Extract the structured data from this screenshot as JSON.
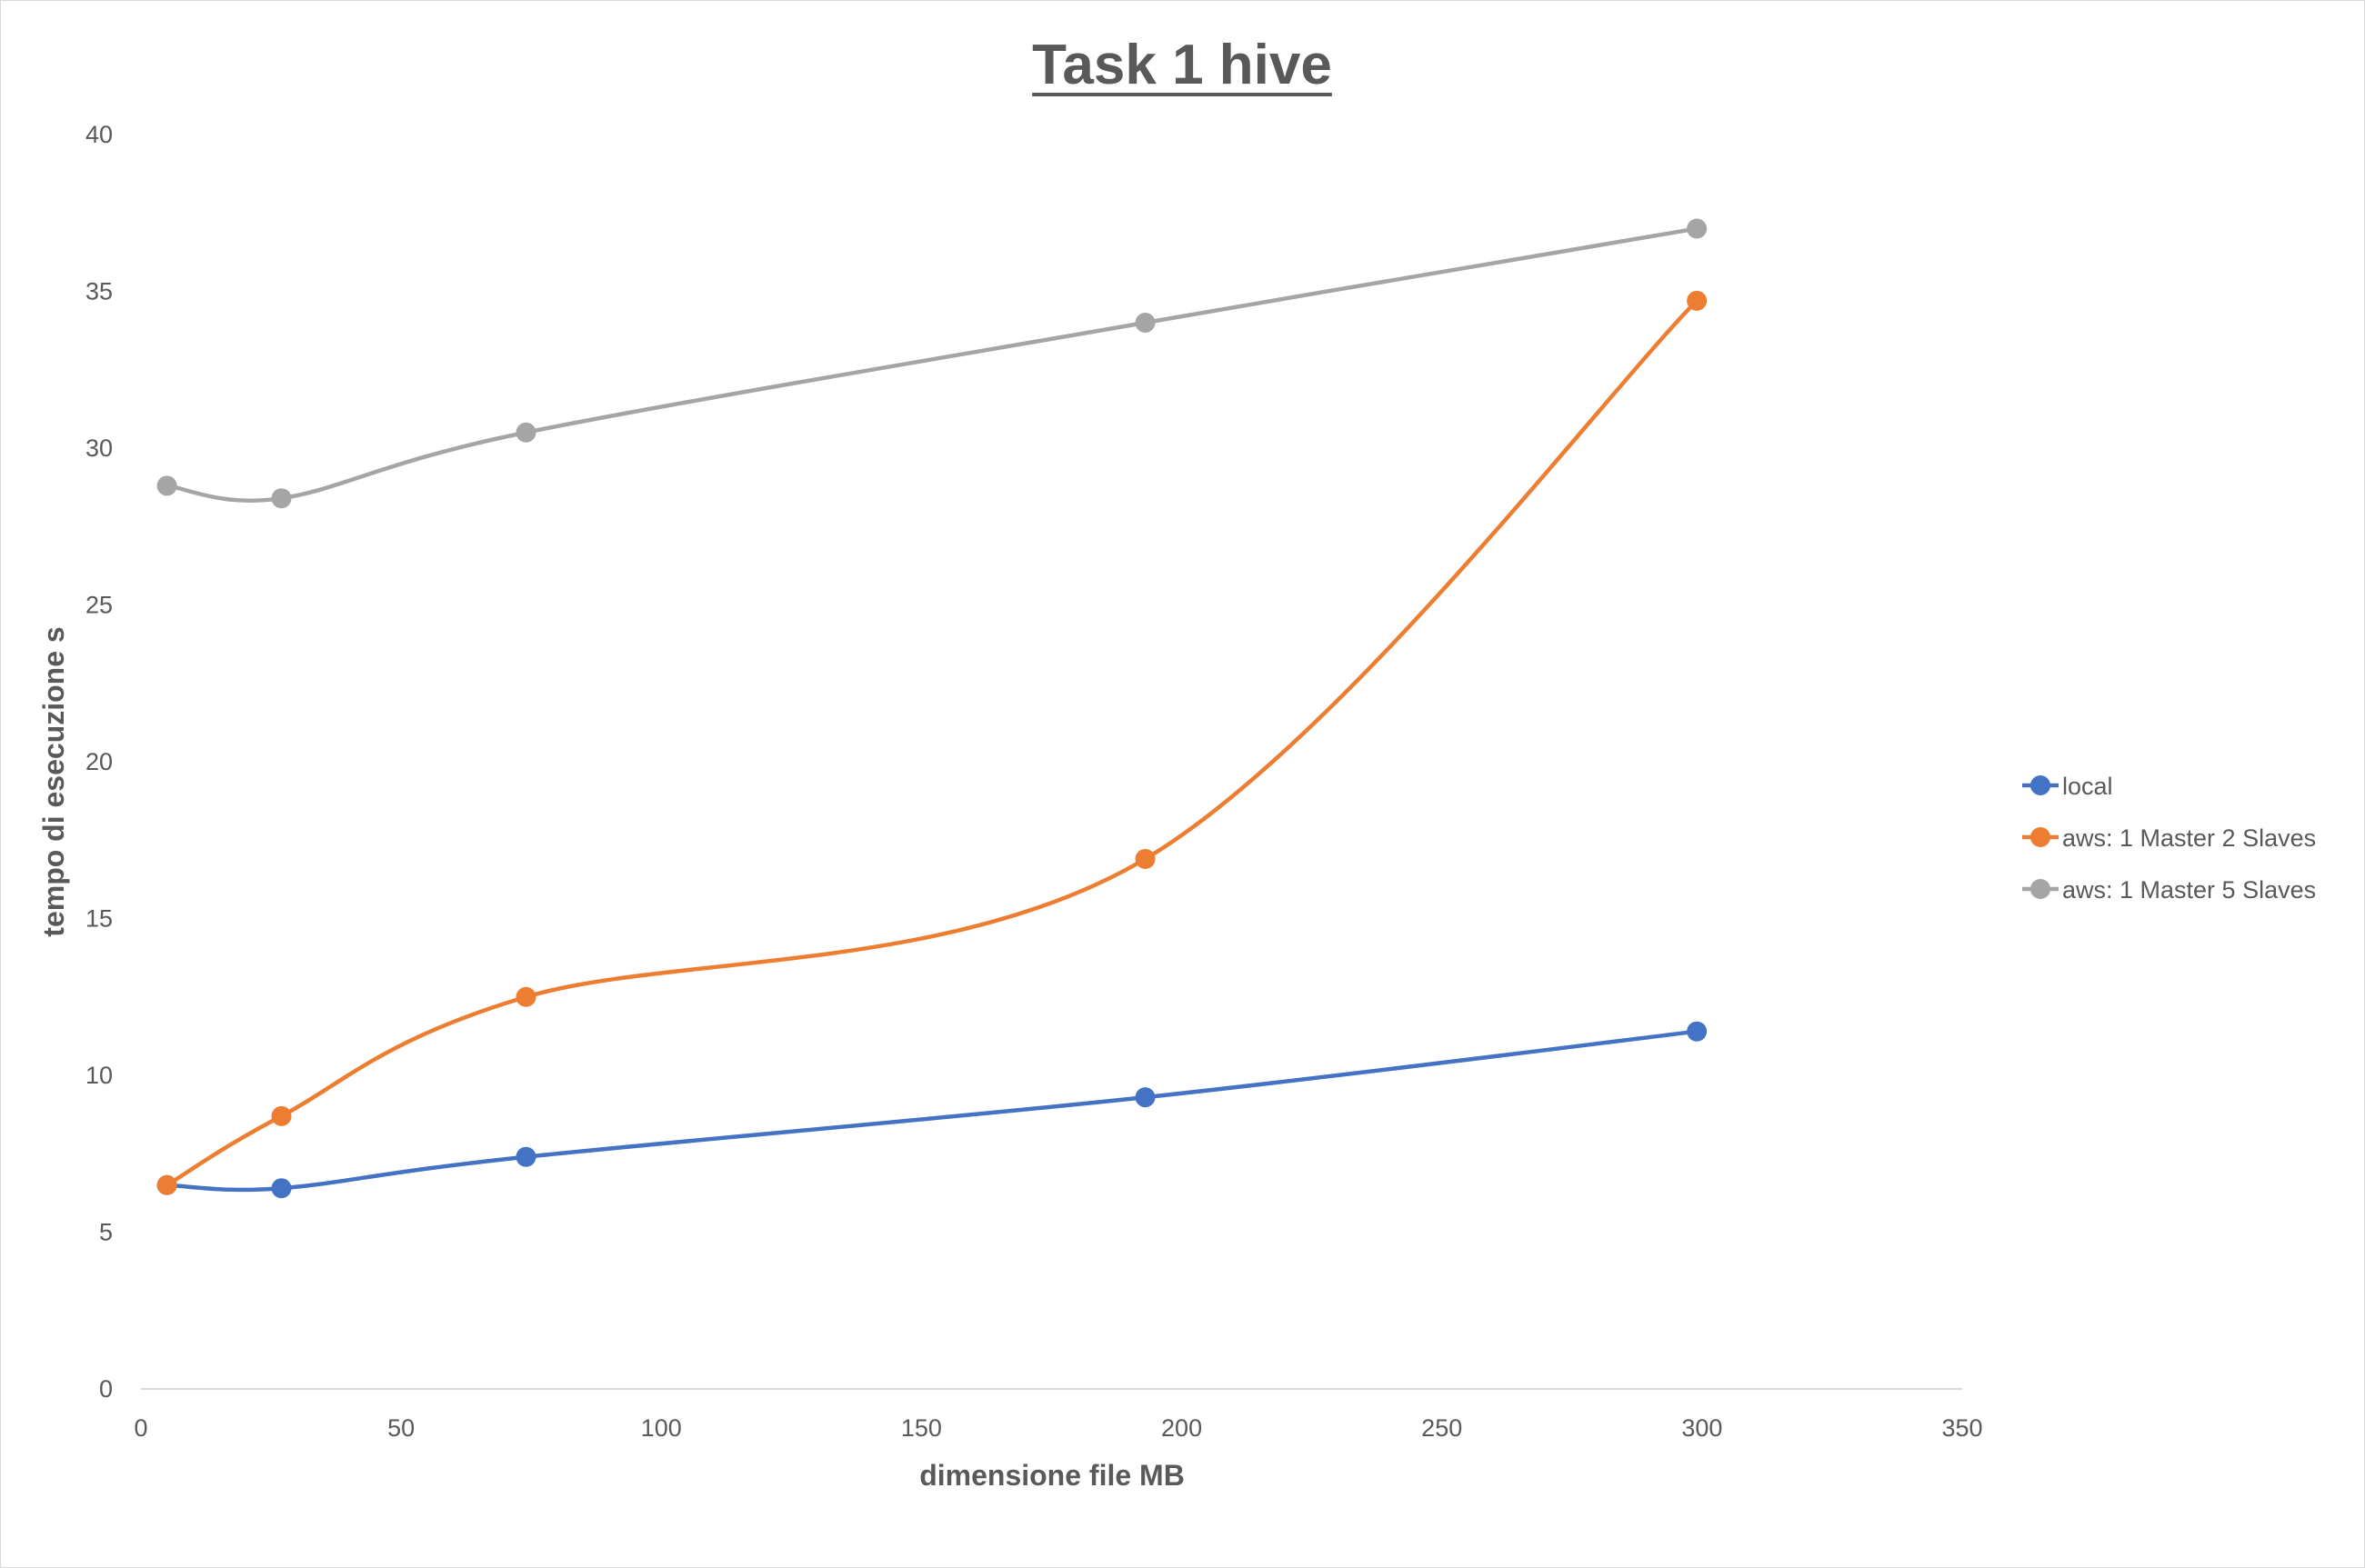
{
  "chart_data": {
    "type": "line",
    "title": "Task 1 hive",
    "xlabel": "dimensione file MB",
    "ylabel": "tempo di esecuzione s",
    "xlim": [
      0,
      350
    ],
    "ylim": [
      0,
      40
    ],
    "x_ticks": [
      "0",
      "50",
      "100",
      "150",
      "200",
      "250",
      "300",
      "350"
    ],
    "y_ticks": [
      "0",
      "5",
      "10",
      "15",
      "20",
      "25",
      "30",
      "35",
      "40"
    ],
    "grid": false,
    "legend_position": "right",
    "smooth": true,
    "series": [
      {
        "name": "local",
        "color": "#4472C4",
        "points": [
          [
            5,
            6.5
          ],
          [
            27,
            6.4
          ],
          [
            74,
            7.4
          ],
          [
            193,
            9.3
          ],
          [
            299,
            11.4
          ]
        ]
      },
      {
        "name": "aws: 1 Master 2 Slaves",
        "color": "#ED7D31",
        "points": [
          [
            5,
            6.5
          ],
          [
            27,
            8.7
          ],
          [
            74,
            12.5
          ],
          [
            193,
            16.9
          ],
          [
            299,
            34.7
          ]
        ]
      },
      {
        "name": "aws: 1 Master 5 Slaves",
        "color": "#A5A5A5",
        "points": [
          [
            5,
            28.8
          ],
          [
            27,
            28.4
          ],
          [
            74,
            30.5
          ],
          [
            193,
            34.0
          ],
          [
            299,
            37.0
          ]
        ]
      }
    ]
  }
}
